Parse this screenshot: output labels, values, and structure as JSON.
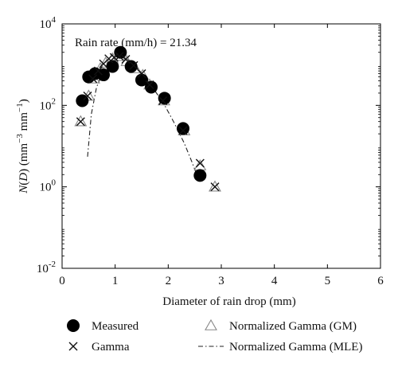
{
  "chart_data": {
    "type": "scatter",
    "title": "",
    "xlabel": "Diameter of rain drop (mm)",
    "ylabel": "N(D) (mm⁻³ mm⁻¹)",
    "ylabel_parts": {
      "n_italic": "N",
      "open": "(",
      "d_italic": "D",
      "close_open_unit": ") (mm",
      "exp1": "−3",
      "mid": " mm",
      "exp2": "−1",
      "close": ")"
    },
    "annotation": "Rain rate (mm/h) = 21.34",
    "xlim": [
      0,
      6
    ],
    "ylim": [
      0.01,
      10000
    ],
    "yscale": "log",
    "xticks": [
      0,
      1,
      2,
      3,
      4,
      5,
      6
    ],
    "xtick_labels": [
      "0",
      "1",
      "2",
      "3",
      "4",
      "5",
      "6"
    ],
    "yticks": [
      0.01,
      1,
      100,
      10000
    ],
    "ytick_labels": [
      {
        "base": "10",
        "exp": "-2"
      },
      {
        "base": "10",
        "exp": "0"
      },
      {
        "base": "10",
        "exp": "2"
      },
      {
        "base": "10",
        "exp": "4"
      }
    ],
    "grid": false,
    "legend_position": "bottom",
    "series": [
      {
        "name": "Measured",
        "marker": "filled-circle",
        "color": "#000000",
        "x": [
          0.38,
          0.5,
          0.62,
          0.78,
          0.95,
          1.1,
          1.3,
          1.5,
          1.68,
          1.93,
          2.28,
          2.6
        ],
        "y": [
          130,
          500,
          600,
          560,
          900,
          2000,
          900,
          420,
          280,
          150,
          27,
          1.9
        ]
      },
      {
        "name": "Gamma",
        "marker": "x",
        "color": "#111111",
        "x": [
          0.35,
          0.48,
          0.58,
          0.68,
          0.78,
          0.88,
          0.98,
          1.08,
          1.2,
          1.35,
          1.5,
          1.65,
          1.9,
          2.28,
          2.6,
          2.88
        ],
        "y": [
          40,
          170,
          450,
          700,
          1050,
          1400,
          1500,
          1600,
          1350,
          950,
          600,
          320,
          130,
          24,
          3.8,
          1.0
        ]
      },
      {
        "name": "Normalized Gamma (GM)",
        "marker": "open-triangle",
        "color": "#888888",
        "x": [
          0.35,
          0.5,
          0.6,
          0.72,
          0.82,
          0.95,
          1.08,
          1.22,
          1.38,
          1.52,
          1.65,
          1.92,
          2.3,
          2.6,
          2.88
        ],
        "y": [
          40,
          170,
          450,
          800,
          1100,
          1400,
          1600,
          1200,
          800,
          550,
          320,
          130,
          24,
          3.3,
          1.0
        ]
      },
      {
        "name": "Normalized Gamma (MLE)",
        "marker": "dash-dot-line",
        "color": "#222222",
        "x": [
          0.48,
          0.55,
          0.65,
          0.78,
          0.9,
          1.02,
          1.12,
          1.25,
          1.4,
          1.55,
          1.7,
          1.9,
          2.1,
          2.3,
          2.45,
          2.58
        ],
        "y": [
          5.5,
          60,
          280,
          700,
          1200,
          1500,
          1550,
          1300,
          900,
          520,
          280,
          120,
          40,
          12,
          4,
          1.4
        ]
      }
    ],
    "legend": [
      {
        "label": "Measured",
        "marker": "filled-circle"
      },
      {
        "label": "Normalized Gamma (GM)",
        "marker": "open-triangle"
      },
      {
        "label": "Gamma",
        "marker": "x"
      },
      {
        "label": "Normalized Gamma (MLE)",
        "marker": "dash-dot-line"
      }
    ]
  }
}
